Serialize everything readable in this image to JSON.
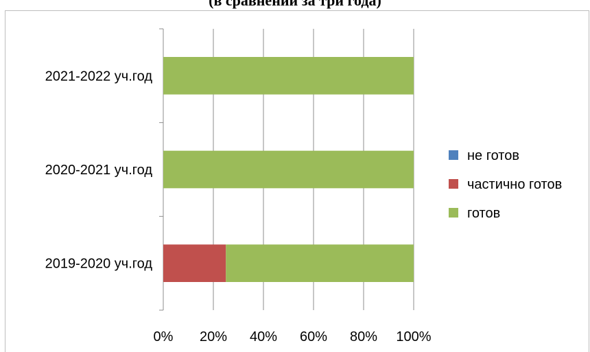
{
  "title": "(в сравнении за три года)",
  "chart_data": {
    "type": "bar",
    "orientation": "horizontal",
    "stacked": "percent",
    "categories": [
      "2019-2020 уч.год",
      "2020-2021 уч.год",
      "2021-2022 уч.год"
    ],
    "series": [
      {
        "name": "не готов",
        "values": [
          0,
          0,
          0
        ],
        "color": "#4f81bd"
      },
      {
        "name": "частично готов",
        "values": [
          25,
          0,
          0
        ],
        "color": "#c0504d"
      },
      {
        "name": "готов",
        "values": [
          75,
          100,
          100
        ],
        "color": "#9bbb59"
      }
    ],
    "xlim": [
      0,
      100
    ],
    "xticks": [
      "0%",
      "20%",
      "40%",
      "60%",
      "80%",
      "100%"
    ],
    "grid": true,
    "legend_position": "right"
  }
}
